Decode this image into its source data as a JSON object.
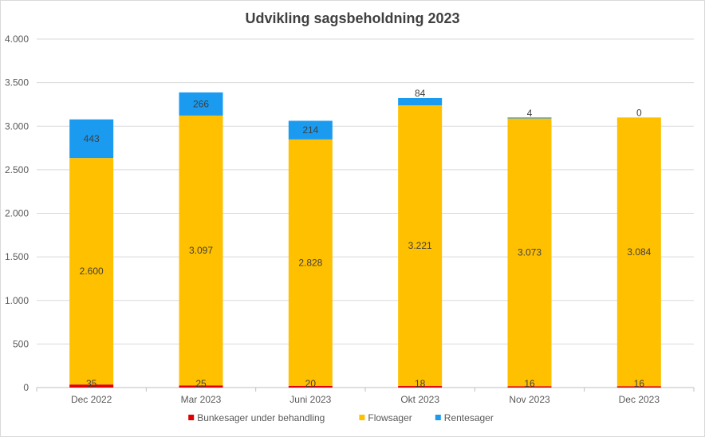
{
  "chart_data": {
    "type": "bar",
    "stacked": true,
    "title": "Udvikling sagsbeholdning 2023",
    "xlabel": "",
    "ylabel": "",
    "categories": [
      "Dec 2022",
      "Mar 2023",
      "Juni 2023",
      "Okt 2023",
      "Nov 2023",
      "Dec 2023"
    ],
    "ylim": [
      0,
      4000
    ],
    "yticks": [
      0,
      500,
      1000,
      1500,
      2000,
      2500,
      3000,
      3500,
      4000
    ],
    "ytick_labels": [
      "0",
      "500",
      "1.000",
      "1.500",
      "2.000",
      "2.500",
      "3.000",
      "3.500",
      "4.000"
    ],
    "grid": true,
    "legend_position": "bottom",
    "series": [
      {
        "name": "Bunkesager under behandling",
        "color": "#e00000",
        "values": [
          35,
          25,
          20,
          18,
          16,
          16
        ],
        "labels": [
          "35",
          "25",
          "20",
          "18",
          "16",
          "16"
        ]
      },
      {
        "name": "Flowsager",
        "color": "#ffc000",
        "values": [
          2600,
          3097,
          2828,
          3221,
          3073,
          3084
        ],
        "labels": [
          "2.600",
          "3.097",
          "2.828",
          "3.221",
          "3.073",
          "3.084"
        ]
      },
      {
        "name": "Rentesager",
        "color": "#1a9bf0",
        "values": [
          443,
          266,
          214,
          84,
          4,
          0
        ],
        "labels": [
          "443",
          "266",
          "214",
          "84",
          "4",
          "0"
        ]
      }
    ]
  }
}
